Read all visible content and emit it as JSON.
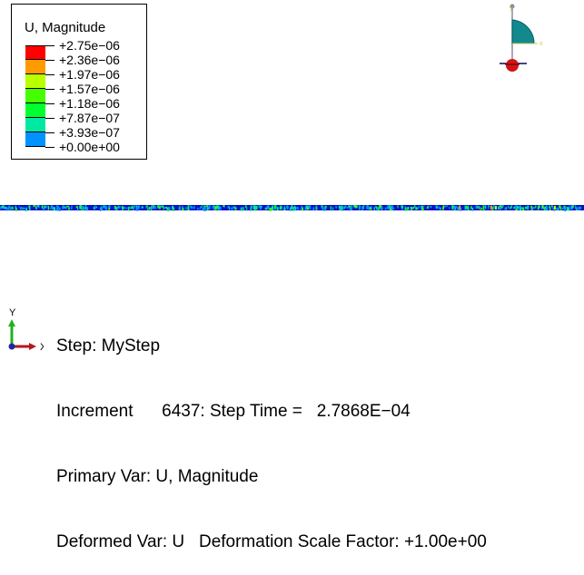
{
  "legend": {
    "title": "U, Magnitude",
    "levels": [
      {
        "label": "+2.75e−06",
        "color": "#ff0000"
      },
      {
        "label": "+2.36e−06",
        "color": "#ff9a00"
      },
      {
        "label": "+1.97e−06",
        "color": "#b9ff00"
      },
      {
        "label": "+1.57e−06",
        "color": "#45ff00"
      },
      {
        "label": "+1.18e−06",
        "color": "#00ff2e"
      },
      {
        "label": "+7.87e−07",
        "color": "#00e9a2"
      },
      {
        "label": "+3.93e−07",
        "color": "#0092ff"
      },
      {
        "label": "+0.00e+00",
        "color": "#0000ff"
      }
    ]
  },
  "triad": {
    "y_label": "Y",
    "x_label": "X"
  },
  "info": {
    "step": "Step: MyStep",
    "increment": "Increment      6437: Step Time =   2.7868E−04",
    "primary_var": "Primary Var: U, Magnitude",
    "deformed_var": "Deformed Var: U   Deformation Scale Factor: +1.00e+00"
  },
  "colors": {
    "mesh_primary": "#0a10c8",
    "triad_fill": "#12898f",
    "triad_dot": "#d41414"
  }
}
